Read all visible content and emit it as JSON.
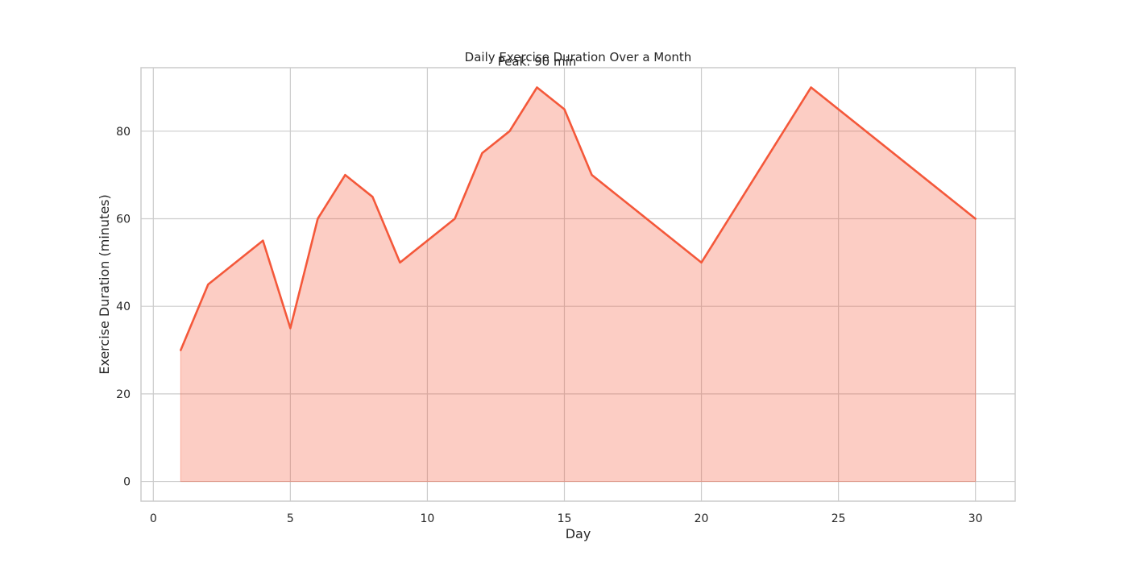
{
  "chart_data": {
    "type": "area",
    "title": "Daily Exercise Duration Over a Month",
    "xlabel": "Day",
    "ylabel": "Exercise Duration (minutes)",
    "x": [
      1,
      2,
      4,
      5,
      6,
      7,
      8,
      9,
      11,
      12,
      13,
      14,
      15,
      16,
      20,
      24,
      30
    ],
    "values": [
      30,
      45,
      55,
      35,
      60,
      70,
      65,
      50,
      60,
      75,
      80,
      90,
      85,
      70,
      50,
      90,
      60
    ],
    "xlim": [
      -0.45,
      31.45
    ],
    "ylim": [
      -4.5,
      94.5
    ],
    "xticks": [
      0,
      5,
      10,
      15,
      20,
      25,
      30
    ],
    "yticks": [
      0,
      20,
      40,
      60,
      80
    ],
    "grid": true,
    "colors": {
      "line": "#f4583a",
      "fill": "#f4583a",
      "grid": "#cccccc",
      "frame": "#cccccc"
    },
    "annotation": {
      "text": "Peak: 90 min",
      "x": 14,
      "y": 90
    }
  }
}
